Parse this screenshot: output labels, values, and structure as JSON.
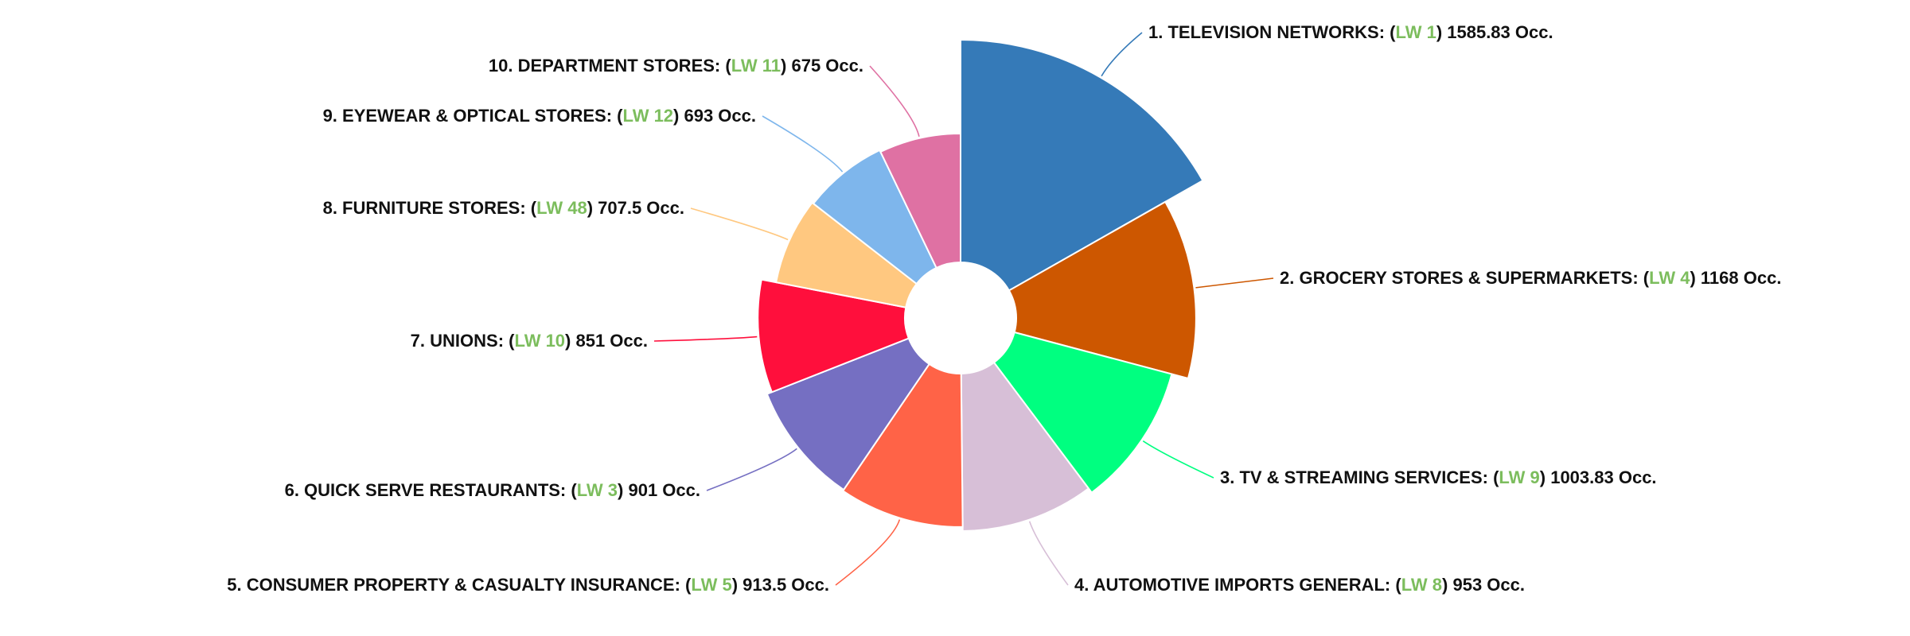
{
  "chart_data": {
    "type": "pie",
    "variant": "variable-radius-donut",
    "title": "",
    "legend": "none",
    "label_lw_color": "#7cbd5d",
    "unit": "Occ.",
    "slices": [
      {
        "rank": "1",
        "name": "TELEVISION NETWORKS",
        "lw": "LW 1",
        "value": 1585.83,
        "value_text": "1585.83",
        "color": "#357ab8"
      },
      {
        "rank": "2",
        "name": "GROCERY STORES & SUPERMARKETS",
        "lw": "LW 4",
        "value": 1168,
        "value_text": "1168",
        "color": "#cd5700"
      },
      {
        "rank": "3",
        "name": "TV & STREAMING SERVICES",
        "lw": "LW 9",
        "value": 1003.83,
        "value_text": "1003.83",
        "color": "#00ff80"
      },
      {
        "rank": "4",
        "name": "AUTOMOTIVE IMPORTS GENERAL",
        "lw": "LW 8",
        "value": 953,
        "value_text": "953",
        "color": "#d7bfd7"
      },
      {
        "rank": "5",
        "name": "CONSUMER PROPERTY & CASUALTY INSURANCE",
        "lw": "LW 5",
        "value": 913.5,
        "value_text": "913.5",
        "color": "#ff6347"
      },
      {
        "rank": "6",
        "name": "QUICK SERVE RESTAURANTS",
        "lw": "LW 3",
        "value": 901,
        "value_text": "901",
        "color": "#756fc2"
      },
      {
        "rank": "7",
        "name": "UNIONS",
        "lw": "LW 10",
        "value": 851,
        "value_text": "851",
        "color": "#ff0f3c"
      },
      {
        "rank": "8",
        "name": "FURNITURE STORES",
        "lw": "LW 48",
        "value": 707.5,
        "value_text": "707.5",
        "color": "#ffc880"
      },
      {
        "rank": "9",
        "name": "EYEWEAR & OPTICAL STORES",
        "lw": "LW 12",
        "value": 693,
        "value_text": "693",
        "color": "#7eb6ec"
      },
      {
        "rank": "10",
        "name": "DEPARTMENT STORES",
        "lw": "LW 11",
        "value": 675,
        "value_text": "675",
        "color": "#df71a3"
      }
    ]
  }
}
